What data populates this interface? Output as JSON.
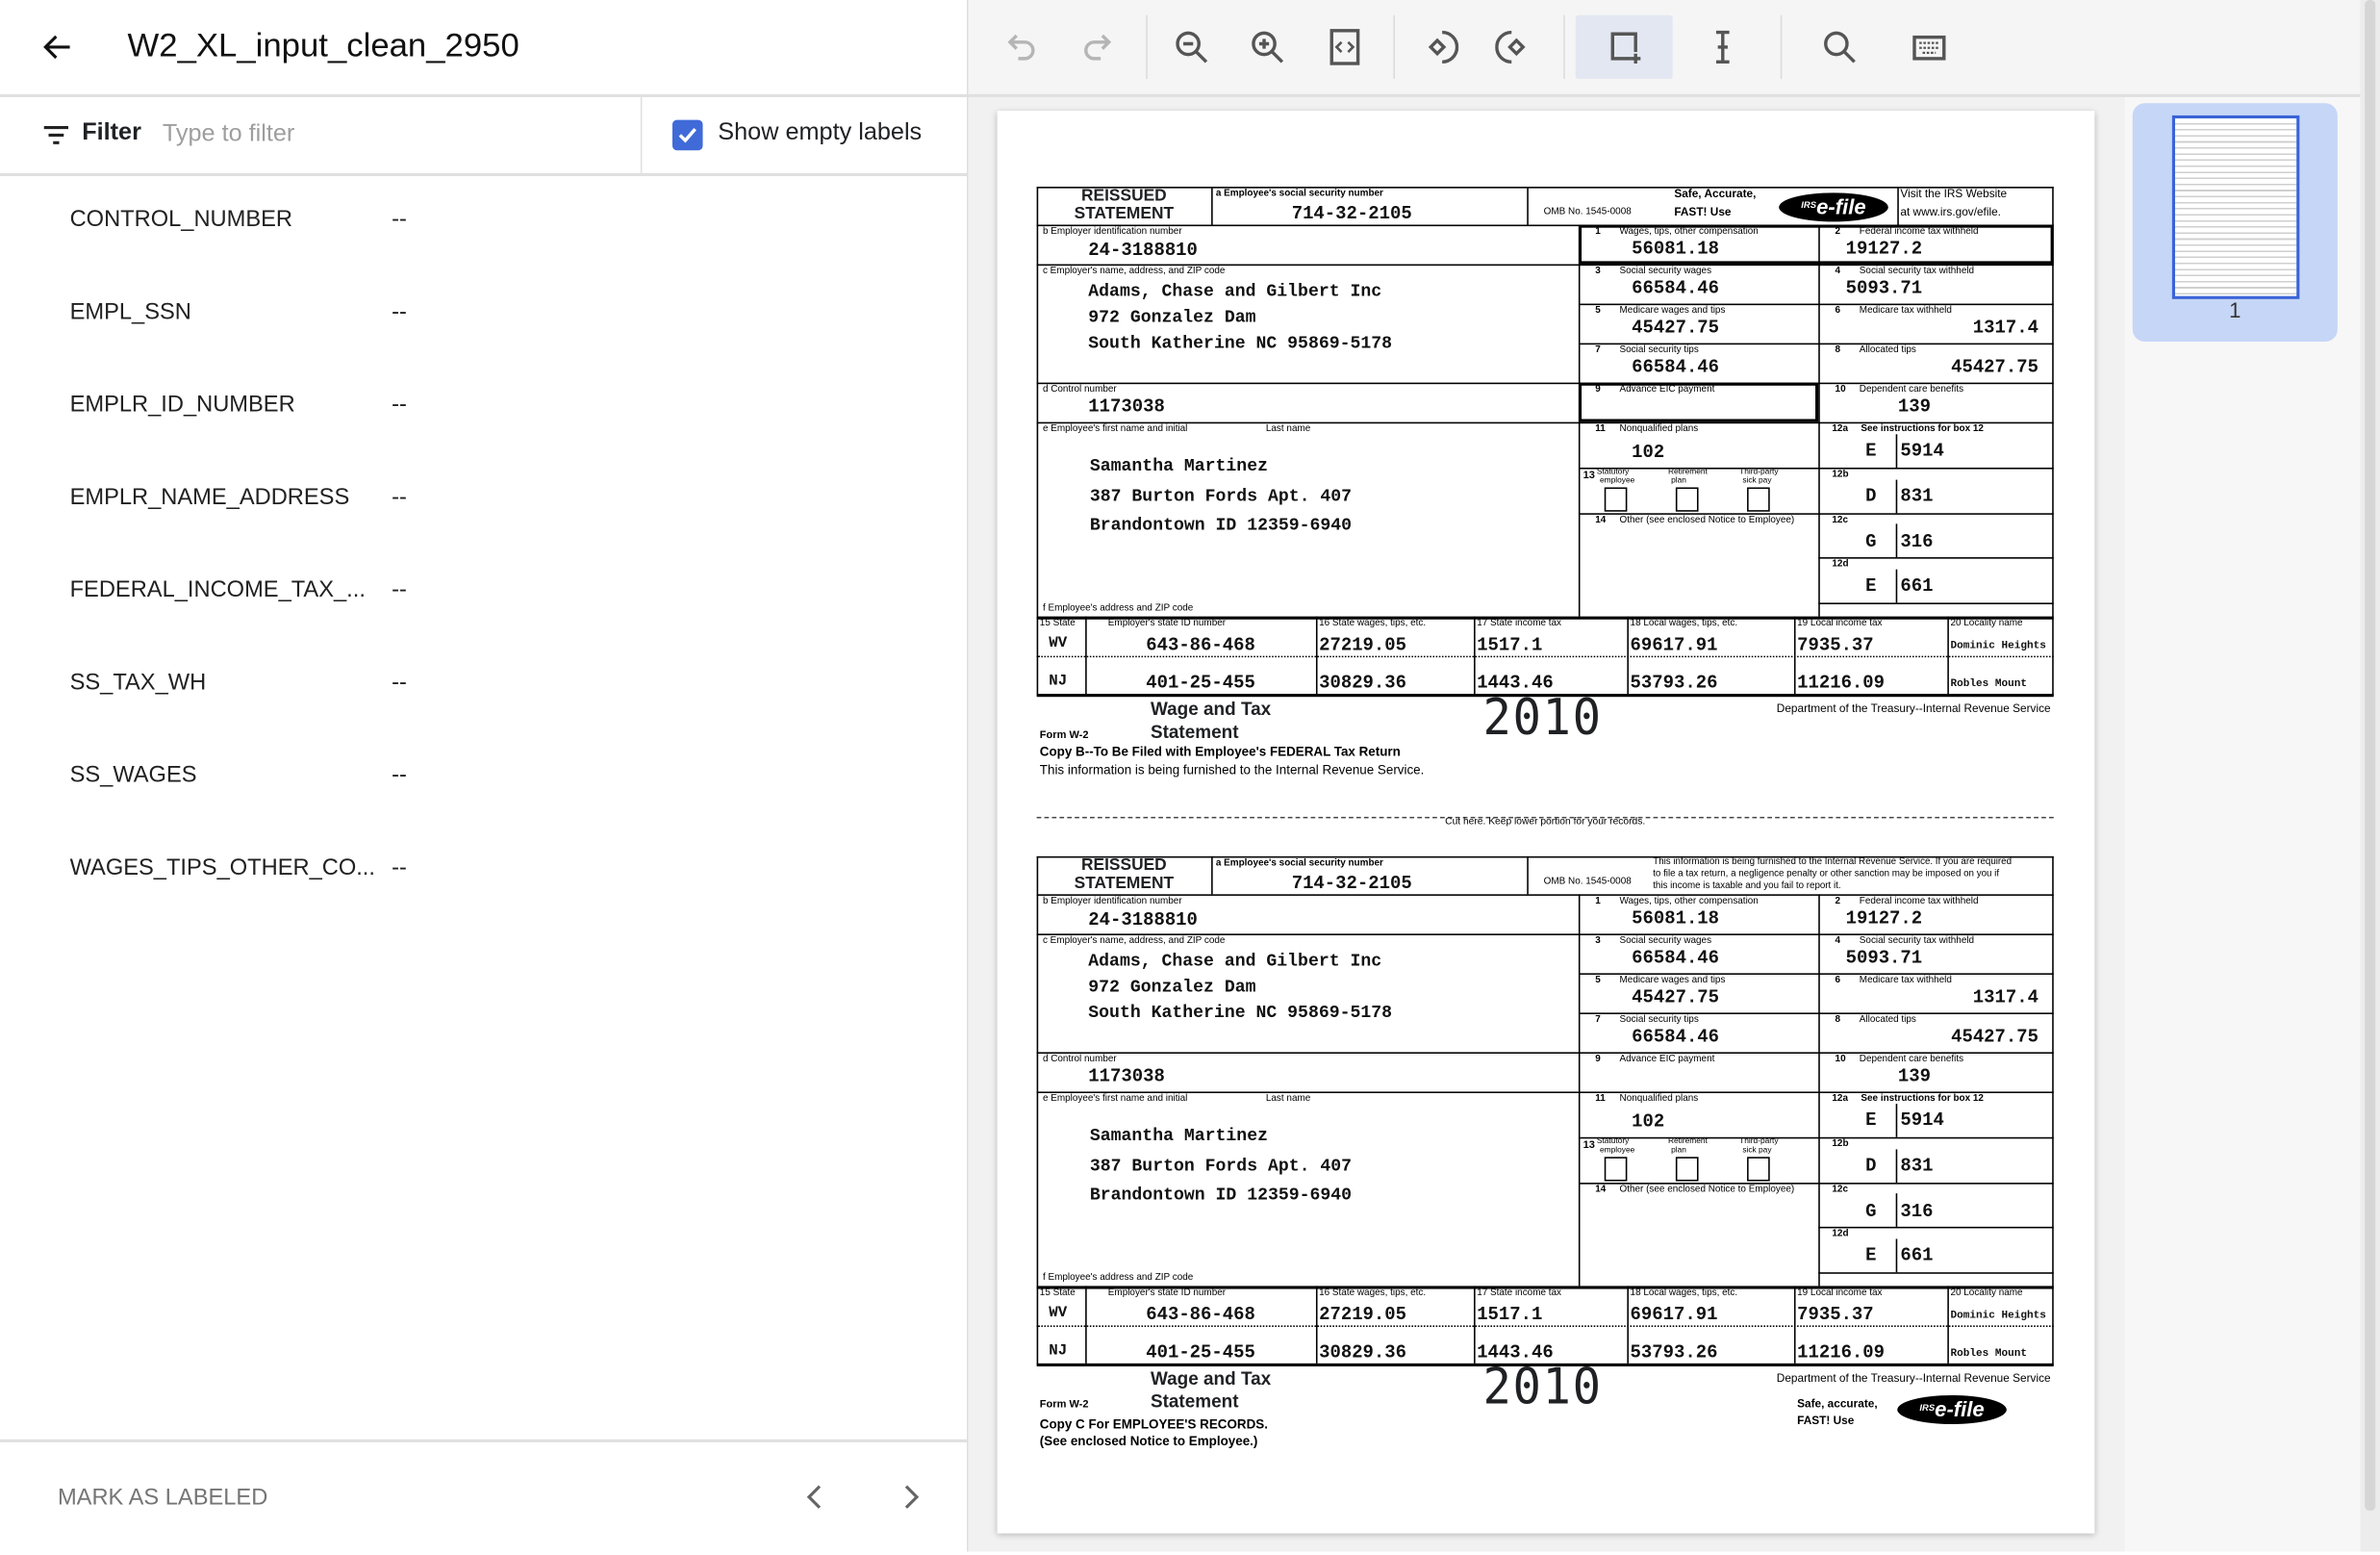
{
  "header": {
    "title": "W2_XL_input_clean_2950"
  },
  "filter": {
    "label": "Filter",
    "placeholder": "Type to filter",
    "show_empty_label": "Show empty labels",
    "show_empty_checked": true
  },
  "labels": [
    {
      "name": "CONTROL_NUMBER",
      "value": "--"
    },
    {
      "name": "EMPL_SSN",
      "value": "--"
    },
    {
      "name": "EMPLR_ID_NUMBER",
      "value": "--"
    },
    {
      "name": "EMPLR_NAME_ADDRESS",
      "value": "--"
    },
    {
      "name": "FEDERAL_INCOME_TAX_...",
      "value": "--"
    },
    {
      "name": "SS_TAX_WH",
      "value": "--"
    },
    {
      "name": "SS_WAGES",
      "value": "--"
    },
    {
      "name": "WAGES_TIPS_OTHER_CO...",
      "value": "--"
    }
  ],
  "footer": {
    "mark_labeled": "MARK AS LABELED"
  },
  "toolbar": {
    "tools": [
      "undo-icon",
      "redo-icon",
      "zoom-out-icon",
      "zoom-in-icon",
      "fit-page-icon",
      "rotate-left-icon",
      "rotate-right-icon",
      "bounding-box-icon",
      "text-select-icon",
      "search-icon",
      "keyboard-icon"
    ],
    "active": "bounding-box-icon",
    "accent": "#3f6ad8"
  },
  "thumbnails": [
    {
      "page": "1",
      "selected": true
    }
  ],
  "w2": {
    "reissued": "REISSUED",
    "statement": "STATEMENT",
    "a_label": "a  Employee's social security number",
    "ssn": "714-32-2105",
    "omb": "OMB No. 1545-0008",
    "safe1": "Safe, Accurate,",
    "safe2": "FAST! Use",
    "efile_irs": "IRS",
    "efile": "e-file",
    "visit1": "Visit the IRS Website",
    "visit2": "at www.irs.gov/efile.",
    "b_label": "b  Employer identification number",
    "ein": "24-3188810",
    "c_label": "c  Employer's name, address, and ZIP code",
    "employer_lines": [
      "Adams, Chase and Gilbert Inc",
      "972 Gonzalez Dam",
      "South Katherine   NC   95869-5178"
    ],
    "d_label": "d  Control number",
    "control": "1173038",
    "e_label": "e  Employee's first name and initial",
    "last_name_label": "Last name",
    "employee_lines": [
      "Samantha   Martinez",
      "387 Burton Fords Apt. 407",
      "Brandontown   ID     12359-6940"
    ],
    "f_label": "f  Employee's address and ZIP code",
    "boxes": [
      {
        "num": "1",
        "label": "Wages, tips, other compensation",
        "value": "56081.18"
      },
      {
        "num": "2",
        "label": "Federal income tax withheld",
        "value": "19127.2"
      },
      {
        "num": "3",
        "label": "Social security wages",
        "value": "66584.46"
      },
      {
        "num": "4",
        "label": "Social security tax withheld",
        "value": "5093.71"
      },
      {
        "num": "5",
        "label": "Medicare wages and tips",
        "value": "45427.75"
      },
      {
        "num": "6",
        "label": "Medicare tax withheld",
        "value": "1317.4"
      },
      {
        "num": "7",
        "label": "Social security tips",
        "value": "66584.46"
      },
      {
        "num": "8",
        "label": "Allocated tips",
        "value": "45427.75"
      },
      {
        "num": "9",
        "label": "Advance EIC payment",
        "value": ""
      },
      {
        "num": "10",
        "label": "Dependent care benefits",
        "value": "139"
      },
      {
        "num": "11",
        "label": "Nonqualified plans",
        "value": "102"
      }
    ],
    "box12": [
      {
        "num": "12a",
        "label": "See instructions for box 12",
        "code": "E",
        "amount": "5914"
      },
      {
        "num": "12b",
        "label": "",
        "code": "D",
        "amount": "831"
      },
      {
        "num": "12c",
        "label": "",
        "code": "G",
        "amount": "316"
      },
      {
        "num": "12d",
        "label": "",
        "code": "E",
        "amount": "661"
      }
    ],
    "box13": {
      "num": "13",
      "options": [
        [
          "Statutory",
          "employee"
        ],
        [
          "Retirement",
          "plan"
        ],
        [
          "Third-party",
          "sick pay"
        ]
      ]
    },
    "box14": {
      "num": "14",
      "label": "Other (see enclosed Notice to Employee)"
    },
    "state_headers": [
      "15  State",
      "Employer's state ID number",
      "16  State wages, tips, etc.",
      "17  State income tax",
      "18  Local wages, tips, etc.",
      "19  Local income tax",
      "20  Locality name"
    ],
    "state_rows": [
      [
        "WV",
        "643-86-468",
        "27219.05",
        "1517.1",
        "69617.91",
        "7935.37",
        "Dominic Heights"
      ],
      [
        "NJ",
        "401-25-455",
        "30829.36",
        "1443.46",
        "53793.26",
        "11216.09",
        "Robles Mount"
      ]
    ],
    "wage_tax": "Wage and Tax",
    "statement_title": "Statement",
    "form_w2": "Form  W-2",
    "year": "2010",
    "dept": "Department of the Treasury--Internal Revenue Service"
  },
  "copy_b": {
    "line1": "Copy B--To Be Filed with Employee's FEDERAL Tax Return",
    "line2": "This information is being furnished to the Internal Revenue Service."
  },
  "cut_text": "Cut here.  Keep lower portion for your records.",
  "copy_c": {
    "notice": [
      "This information is being furnished to the Internal Revenue Service.  If you are required",
      "to file a tax return, a negligence penalty or other sanction may be imposed on you if",
      "this income is taxable and you fail to report it."
    ],
    "line1": "Copy C For EMPLOYEE'S RECORDS.",
    "line2": "(See enclosed Notice to Employee.)",
    "safe1": "Safe, accurate,",
    "safe2": "FAST!  Use"
  }
}
